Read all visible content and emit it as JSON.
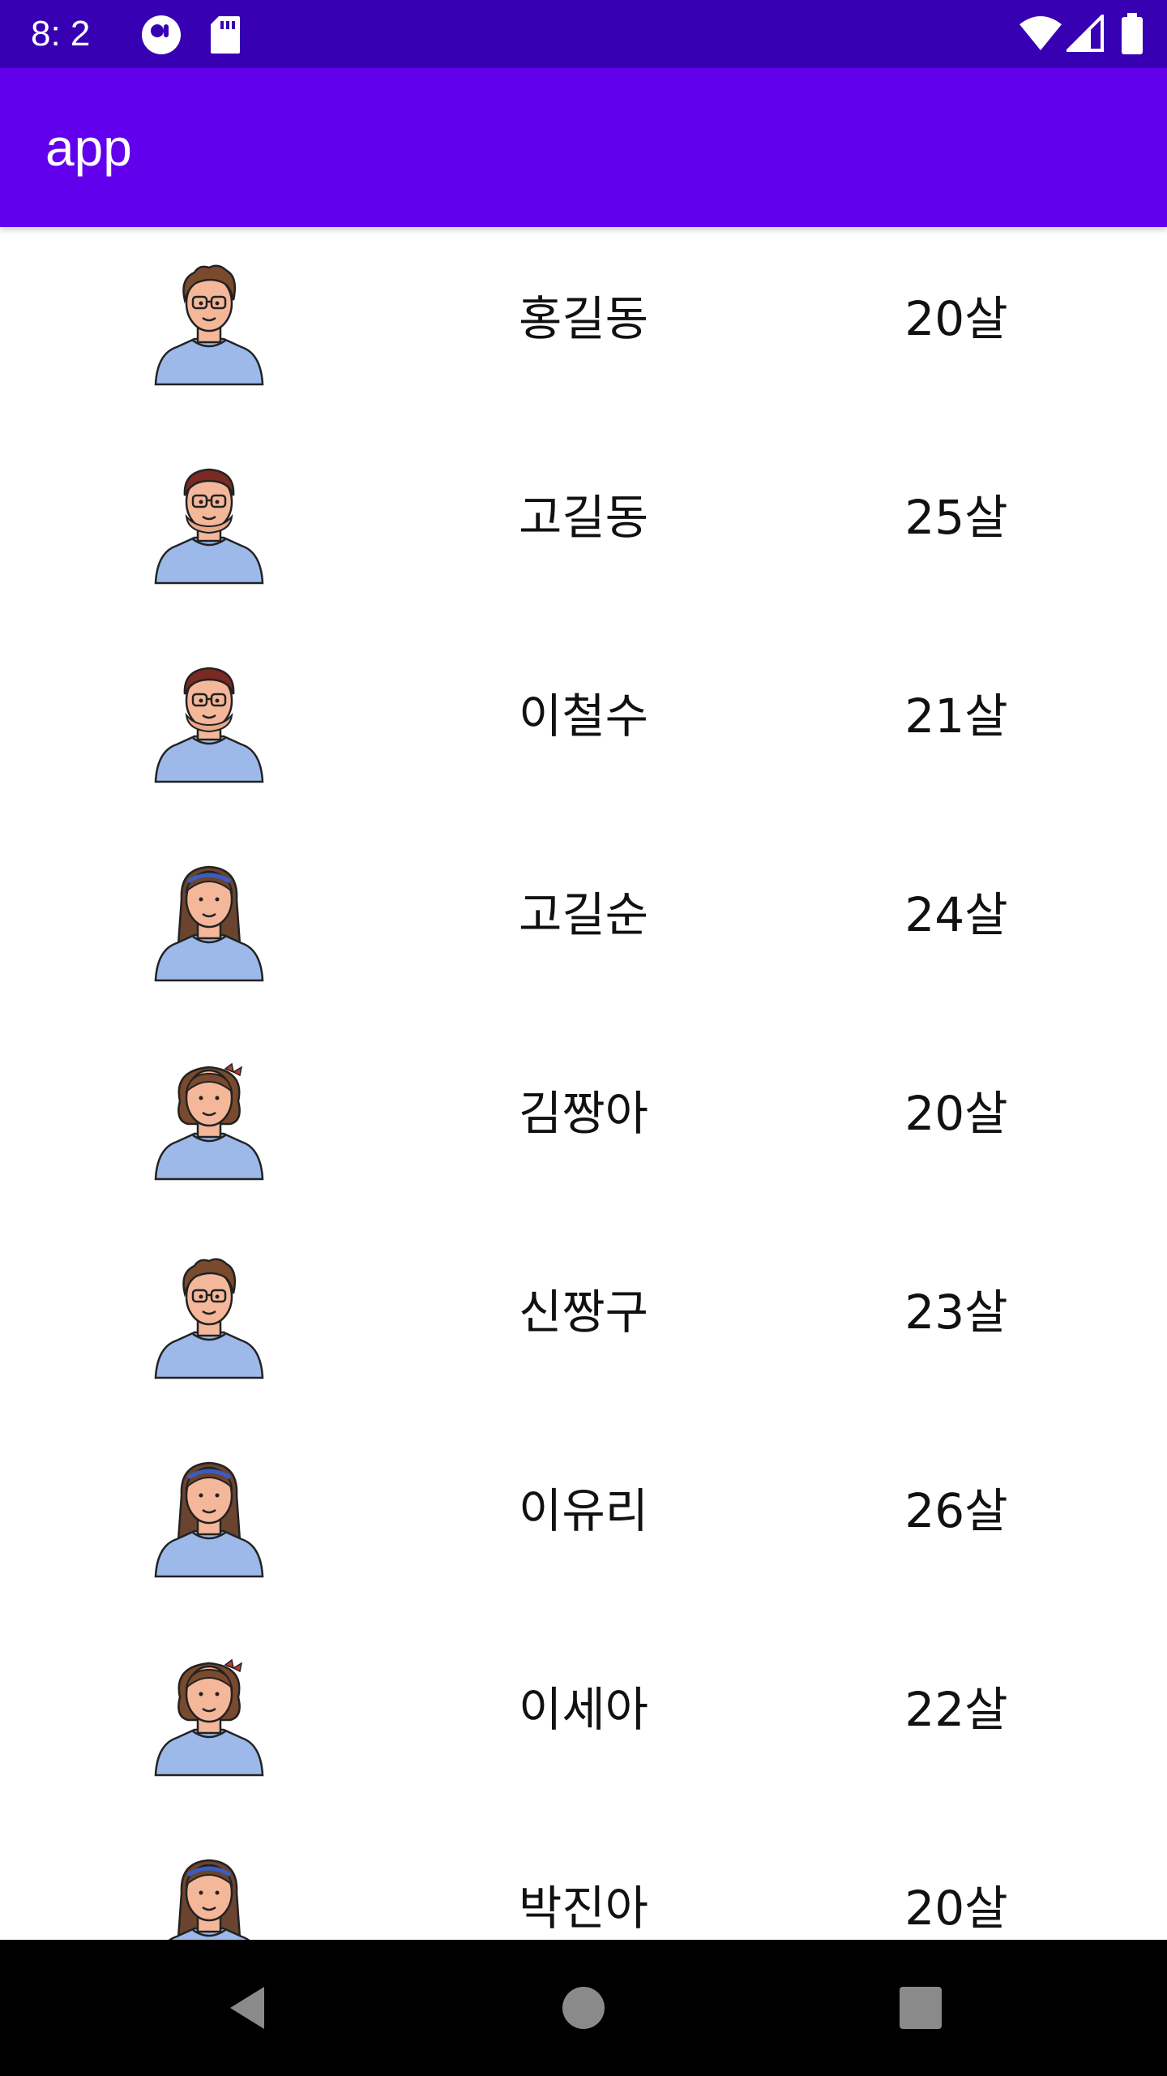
{
  "status_bar": {
    "time": "8:  2",
    "icons": [
      "circle-status-icon",
      "sd-card-icon",
      "wifi-icon",
      "signal-icon",
      "battery-icon"
    ]
  },
  "app_bar": {
    "title": "app"
  },
  "people": [
    {
      "name": "홍길동",
      "age": "20살",
      "avatar": "man-curly-glasses"
    },
    {
      "name": "고길동",
      "age": "25살",
      "avatar": "man-glasses-beard"
    },
    {
      "name": "이철수",
      "age": "21살",
      "avatar": "man-glasses-beard"
    },
    {
      "name": "고길순",
      "age": "24살",
      "avatar": "woman-long-hair"
    },
    {
      "name": "김짱아",
      "age": "20살",
      "avatar": "woman-short-hair-bow"
    },
    {
      "name": "신짱구",
      "age": "23살",
      "avatar": "man-curly-glasses"
    },
    {
      "name": "이유리",
      "age": "26살",
      "avatar": "woman-long-hair"
    },
    {
      "name": "이세아",
      "age": "22살",
      "avatar": "woman-short-hair-bow"
    },
    {
      "name": "박진아",
      "age": "20살",
      "avatar": "woman-long-hair"
    }
  ],
  "colors": {
    "status_bar": "#3700b3",
    "app_bar": "#6200ee",
    "shirt": "#9cb9ea",
    "skin": "#f4b79a"
  },
  "nav_bar": {
    "buttons": [
      "back-icon",
      "home-icon",
      "recents-icon"
    ]
  }
}
